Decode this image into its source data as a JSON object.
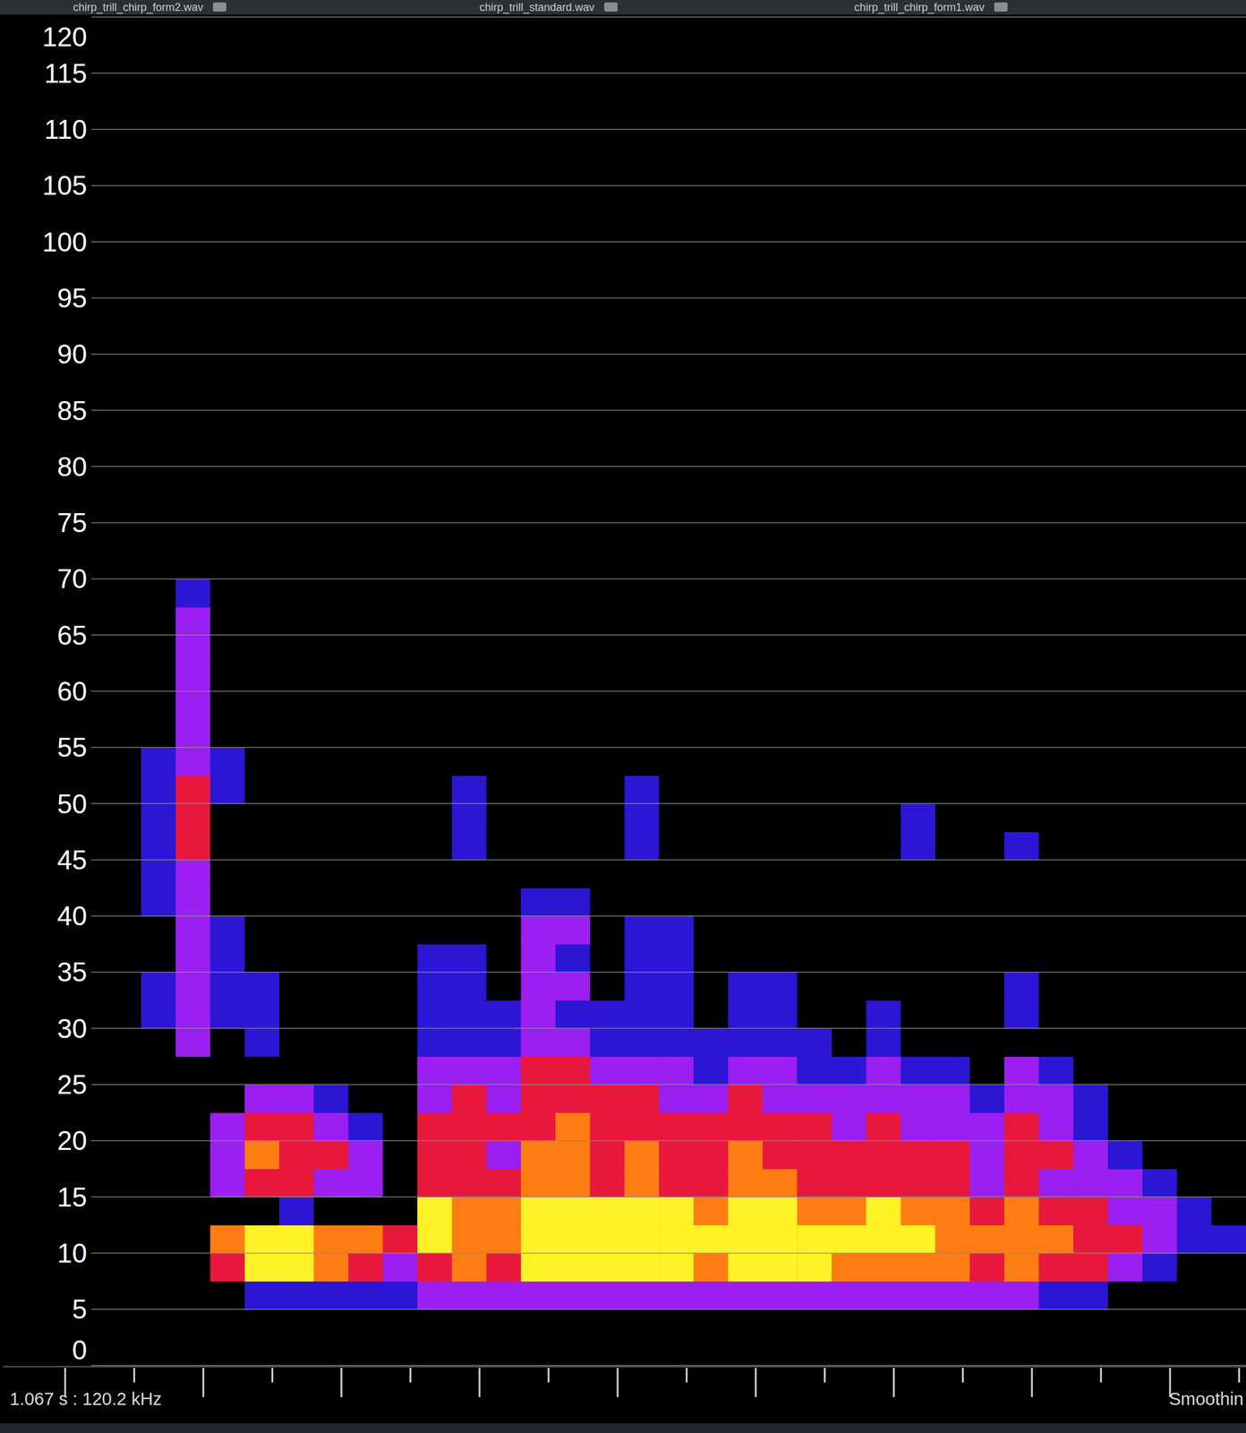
{
  "chart_data": {
    "type": "heatmap",
    "tabs": [
      "chirp_trill_chirp_form2.wav",
      "chirp_trill_standard.wav",
      "chirp_trill_chirp_form1.wav"
    ],
    "annotations": [
      "1.067 s : 120.2 kHz",
      "Smoothin"
    ],
    "xlim": [
      0,
      18
    ],
    "xticks": [
      0.9,
      1.9,
      2.9,
      3.9,
      4.9,
      5.9,
      6.9,
      7.9,
      8.9,
      9.9,
      10.9,
      11.9,
      12.9,
      13.9,
      14.9,
      15.9,
      16.9,
      17.9
    ],
    "ylim": [
      0,
      120
    ],
    "yticks": [
      0,
      5,
      10,
      15,
      20,
      25,
      30,
      35,
      40,
      45,
      50,
      55,
      60,
      65,
      70,
      75,
      80,
      85,
      90,
      95,
      100,
      105,
      110,
      115,
      120
    ],
    "tick_labels": "y",
    "grid": true,
    "zlim": [
      0,
      5
    ],
    "x": [
      2.25,
      2.75,
      3.25,
      3.75,
      4.25,
      4.75,
      5.25,
      5.75,
      6.25,
      6.75,
      7.25,
      7.75,
      8.25,
      8.75,
      9.25,
      9.75,
      10.25,
      10.75,
      11.25,
      11.75,
      12.25,
      12.75,
      13.25,
      13.75,
      14.25,
      14.75,
      15.25,
      15.75,
      16.25,
      16.75,
      17.25,
      17.75
    ],
    "y": [
      1.25,
      3.75,
      6.25,
      8.75,
      11.25,
      13.75,
      16.25,
      18.75,
      21.25,
      23.75,
      26.25,
      28.75,
      31.25,
      33.75,
      36.25,
      38.75,
      41.25,
      43.75,
      46.25,
      48.75,
      51.25,
      53.75,
      56.25,
      58.75,
      61.25,
      63.75,
      66.25,
      68.75
    ],
    "z": [
      [
        0,
        0,
        0,
        0,
        0,
        0,
        0,
        0,
        0,
        0,
        0,
        0,
        1,
        1,
        0,
        0,
        1,
        1,
        1,
        1,
        1,
        1,
        0,
        0,
        0,
        0,
        0,
        0
      ],
      [
        0,
        0,
        0,
        0,
        0,
        0,
        0,
        0,
        0,
        0,
        0,
        2,
        2,
        2,
        2,
        2,
        2,
        2,
        3,
        3,
        3,
        2,
        2,
        2,
        2,
        2,
        2,
        1
      ],
      [
        0,
        0,
        0,
        3,
        4,
        0,
        2,
        2,
        2,
        0,
        0,
        0,
        1,
        1,
        1,
        1,
        0,
        0,
        0,
        0,
        1,
        1,
        0,
        0,
        0,
        0,
        0,
        0
      ],
      [
        0,
        0,
        1,
        5,
        5,
        0,
        3,
        4,
        3,
        2,
        0,
        1,
        1,
        1,
        0,
        0,
        0,
        0,
        0,
        0,
        0,
        0,
        0,
        0,
        0,
        0,
        0,
        0
      ],
      [
        0,
        0,
        1,
        5,
        5,
        1,
        3,
        3,
        3,
        2,
        0,
        0,
        0,
        0,
        0,
        0,
        0,
        0,
        0,
        0,
        0,
        0,
        0,
        0,
        0,
        0,
        0,
        0
      ],
      [
        0,
        0,
        1,
        4,
        4,
        0,
        2,
        3,
        2,
        1,
        0,
        0,
        0,
        0,
        0,
        0,
        0,
        0,
        0,
        0,
        0,
        0,
        0,
        0,
        0,
        0,
        0,
        0
      ],
      [
        0,
        0,
        1,
        3,
        4,
        0,
        2,
        2,
        1,
        0,
        0,
        0,
        0,
        0,
        0,
        0,
        0,
        0,
        0,
        0,
        0,
        0,
        0,
        0,
        0,
        0,
        0,
        0
      ],
      [
        0,
        0,
        1,
        2,
        3,
        0,
        0,
        0,
        0,
        0,
        0,
        0,
        0,
        0,
        0,
        0,
        0,
        0,
        0,
        0,
        0,
        0,
        0,
        0,
        0,
        0,
        0,
        0
      ],
      [
        0,
        0,
        2,
        3,
        5,
        5,
        3,
        3,
        3,
        2,
        2,
        1,
        1,
        1,
        1,
        0,
        0,
        0,
        0,
        0,
        0,
        0,
        0,
        0,
        0,
        0,
        0,
        0
      ],
      [
        0,
        0,
        2,
        4,
        4,
        4,
        3,
        3,
        3,
        3,
        2,
        1,
        1,
        1,
        1,
        0,
        0,
        0,
        1,
        1,
        1,
        0,
        0,
        0,
        0,
        0,
        0,
        0
      ],
      [
        0,
        0,
        2,
        3,
        4,
        4,
        3,
        2,
        3,
        2,
        2,
        1,
        1,
        0,
        0,
        0,
        0,
        0,
        0,
        0,
        0,
        0,
        0,
        0,
        0,
        0,
        0,
        0
      ],
      [
        0,
        0,
        2,
        5,
        5,
        5,
        4,
        4,
        3,
        3,
        3,
        2,
        2,
        2,
        2,
        2,
        1,
        0,
        0,
        0,
        0,
        0,
        0,
        0,
        0,
        0,
        0,
        0
      ],
      [
        0,
        0,
        2,
        5,
        5,
        5,
        4,
        4,
        4,
        3,
        3,
        2,
        1,
        2,
        1,
        2,
        1,
        0,
        0,
        0,
        0,
        0,
        0,
        0,
        0,
        0,
        0,
        0
      ],
      [
        0,
        0,
        2,
        5,
        5,
        5,
        3,
        3,
        3,
        3,
        2,
        1,
        1,
        0,
        0,
        0,
        0,
        0,
        0,
        0,
        0,
        0,
        0,
        0,
        0,
        0,
        0,
        0
      ],
      [
        0,
        0,
        2,
        5,
        5,
        5,
        4,
        4,
        3,
        3,
        2,
        1,
        1,
        1,
        1,
        1,
        0,
        0,
        1,
        1,
        1,
        0,
        0,
        0,
        0,
        0,
        0,
        0
      ],
      [
        0,
        0,
        2,
        5,
        5,
        5,
        3,
        3,
        3,
        2,
        2,
        1,
        1,
        1,
        1,
        1,
        0,
        0,
        0,
        0,
        0,
        0,
        0,
        0,
        0,
        0,
        0,
        0
      ],
      [
        0,
        0,
        2,
        4,
        5,
        4,
        3,
        3,
        3,
        2,
        1,
        1,
        0,
        0,
        0,
        0,
        0,
        0,
        0,
        0,
        0,
        0,
        0,
        0,
        0,
        0,
        0,
        0
      ],
      [
        0,
        0,
        2,
        5,
        5,
        5,
        4,
        4,
        3,
        3,
        2,
        1,
        1,
        1,
        0,
        0,
        0,
        0,
        0,
        0,
        0,
        0,
        0,
        0,
        0,
        0,
        0,
        0
      ],
      [
        0,
        0,
        2,
        5,
        5,
        5,
        4,
        3,
        3,
        2,
        2,
        1,
        1,
        1,
        0,
        0,
        0,
        0,
        0,
        0,
        0,
        0,
        0,
        0,
        0,
        0,
        0,
        0
      ],
      [
        0,
        0,
        2,
        5,
        5,
        4,
        3,
        3,
        3,
        2,
        1,
        1,
        0,
        0,
        0,
        0,
        0,
        0,
        0,
        0,
        0,
        0,
        0,
        0,
        0,
        0,
        0,
        0
      ],
      [
        0,
        0,
        2,
        4,
        5,
        4,
        3,
        3,
        2,
        2,
        1,
        0,
        0,
        0,
        0,
        0,
        0,
        0,
        0,
        0,
        0,
        0,
        0,
        0,
        0,
        0,
        0,
        0
      ],
      [
        0,
        0,
        2,
        4,
        5,
        5,
        3,
        3,
        3,
        2,
        2,
        1,
        1,
        0,
        0,
        0,
        0,
        0,
        0,
        0,
        0,
        0,
        0,
        0,
        0,
        0,
        0,
        0
      ],
      [
        0,
        0,
        2,
        4,
        5,
        4,
        3,
        3,
        2,
        2,
        1,
        0,
        0,
        0,
        0,
        0,
        0,
        0,
        1,
        1,
        0,
        0,
        0,
        0,
        0,
        0,
        0,
        0
      ],
      [
        0,
        0,
        2,
        4,
        4,
        4,
        3,
        3,
        2,
        2,
        1,
        0,
        0,
        0,
        0,
        0,
        0,
        0,
        0,
        0,
        0,
        0,
        0,
        0,
        0,
        0,
        0,
        0
      ],
      [
        0,
        0,
        2,
        3,
        4,
        3,
        2,
        2,
        2,
        1,
        0,
        0,
        0,
        0,
        0,
        0,
        0,
        0,
        0,
        0,
        0,
        0,
        0,
        0,
        0,
        0,
        0,
        0
      ],
      [
        0,
        0,
        2,
        4,
        4,
        4,
        3,
        3,
        3,
        2,
        2,
        0,
        1,
        1,
        0,
        0,
        0,
        0,
        1,
        0,
        0,
        0,
        0,
        0,
        0,
        0,
        0,
        0
      ],
      [
        0,
        0,
        1,
        3,
        4,
        3,
        2,
        3,
        2,
        2,
        1,
        0,
        0,
        0,
        0,
        0,
        0,
        0,
        0,
        0,
        0,
        0,
        0,
        0,
        0,
        0,
        0,
        0
      ],
      [
        0,
        0,
        1,
        3,
        3,
        3,
        2,
        2,
        1,
        1,
        0,
        0,
        0,
        0,
        0,
        0,
        0,
        0,
        0,
        0,
        0,
        0,
        0,
        0,
        0,
        0,
        0,
        0
      ],
      [
        0,
        0,
        0,
        2,
        3,
        2,
        2,
        1,
        0,
        0,
        0,
        0,
        0,
        0,
        0,
        0,
        0,
        0,
        0,
        0,
        0,
        0,
        0,
        0,
        0,
        0,
        0,
        0
      ],
      [
        0,
        0,
        0,
        1,
        2,
        2,
        1,
        0,
        0,
        0,
        0,
        0,
        0,
        0,
        0,
        0,
        0,
        0,
        0,
        0,
        0,
        0,
        0,
        0,
        0,
        0,
        0,
        0
      ],
      [
        0,
        0,
        0,
        0,
        1,
        1,
        0,
        0,
        0,
        0,
        0,
        0,
        0,
        0,
        0,
        0,
        0,
        0,
        0,
        0,
        0,
        0,
        0,
        0,
        0,
        0,
        0,
        0
      ],
      [
        0,
        0,
        0,
        0,
        1,
        0,
        0,
        0,
        0,
        0,
        0,
        0,
        0,
        0,
        0,
        0,
        0,
        0,
        0,
        0,
        0,
        0,
        0,
        0,
        0,
        0,
        0,
        0
      ]
    ]
  }
}
